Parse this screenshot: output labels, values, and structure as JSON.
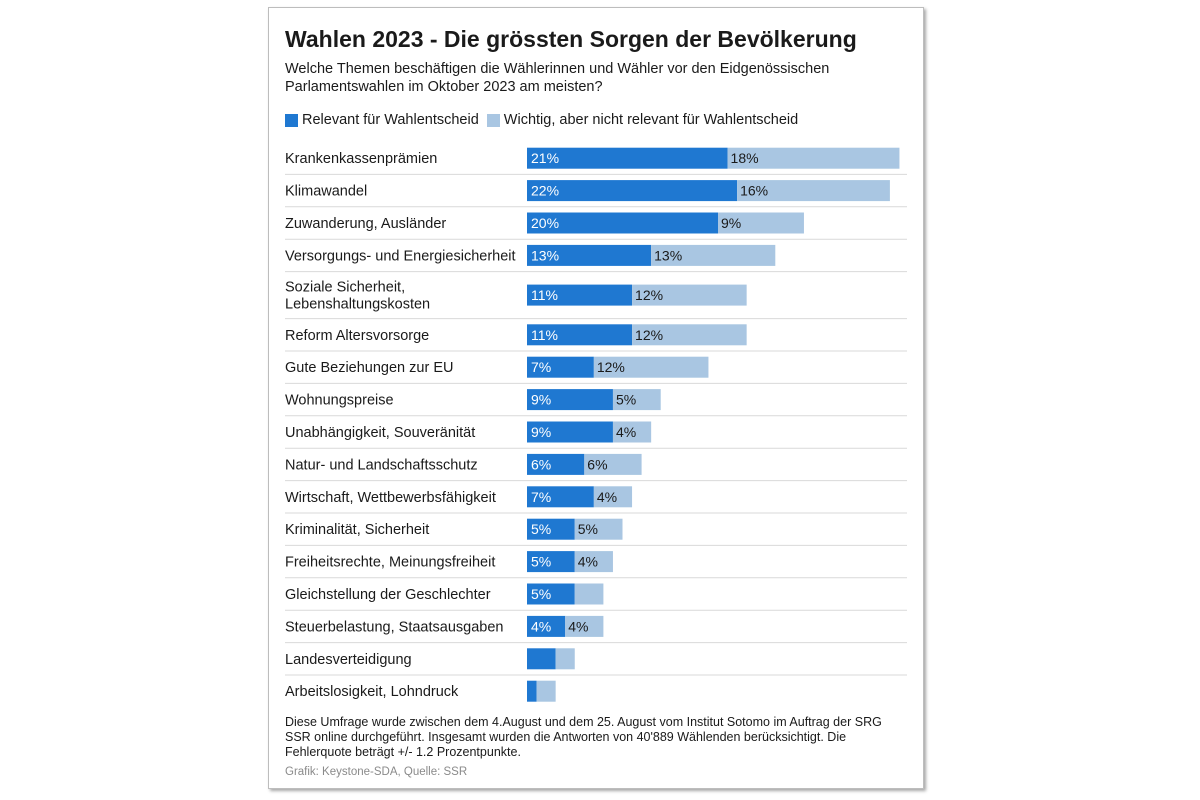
{
  "chart_data": {
    "type": "bar",
    "orientation": "horizontal",
    "stacked": true,
    "title": "Wahlen 2023 - Die grössten Sorgen der Bevölkerung",
    "subtitle": "Welche Themen beschäftigen die Wählerinnen und Wähler vor den Eidgenössischen Parlamentswahlen im Oktober 2023 am meisten?",
    "legend_position": "top-left",
    "colors": {
      "relevant": "#1f78d1",
      "wichtig": "#a9c6e2"
    },
    "categories": [
      "Krankenkassenprämien",
      "Klimawandel",
      "Zuwanderung, Ausländer",
      "Versorgungs- und Energiesicherheit",
      "Soziale Sicherheit,\nLebenshaltungskosten",
      "Reform Altersvorsorge",
      "Gute Beziehungen zur EU",
      "Wohnungspreise",
      "Unabhängigkeit, Souveränität",
      "Natur- und Landschaftsschutz",
      "Wirtschaft, Wettbewerbsfähigkeit",
      "Kriminalität, Sicherheit",
      "Freiheitsrechte, Meinungsfreiheit",
      "Gleichstellung der Geschlechter",
      "Steuerbelastung, Staatsausgaben",
      "Landesverteidigung",
      "Arbeitslosigkeit, Lohndruck"
    ],
    "series": [
      {
        "name": "Relevant für Wahlentscheid",
        "values": [
          21,
          22,
          20,
          13,
          11,
          11,
          7,
          9,
          9,
          6,
          7,
          5,
          5,
          5,
          4,
          3,
          1
        ],
        "labels": [
          "21%",
          "22%",
          "20%",
          "13%",
          "11%",
          "11%",
          "7%",
          "9%",
          "9%",
          "6%",
          "7%",
          "5%",
          "5%",
          "5%",
          "4%",
          "",
          ""
        ]
      },
      {
        "name": "Wichtig, aber nicht relevant für Wahlentscheid",
        "values": [
          18,
          16,
          9,
          13,
          12,
          12,
          12,
          5,
          4,
          6,
          4,
          5,
          4,
          3,
          4,
          2,
          2
        ],
        "labels": [
          "18%",
          "16%",
          "9%",
          "13%",
          "12%",
          "12%",
          "12%",
          "5%",
          "4%",
          "6%",
          "4%",
          "5%",
          "4%",
          "",
          "4%",
          "",
          ""
        ]
      }
    ],
    "xlim": [
      0,
      40
    ]
  },
  "footer": {
    "note": "Diese Umfrage wurde zwischen dem 4.August und dem 25. August vom Institut Sotomo im Auftrag der SRG SSR online durchgeführt. Insgesamt wurden die Antworten von 40'889 Wählenden berücksichtigt. Die Fehlerquote beträgt +/- 1.2 Prozentpunkte.",
    "source": "Grafik: Keystone-SDA, Quelle: SSR"
  }
}
